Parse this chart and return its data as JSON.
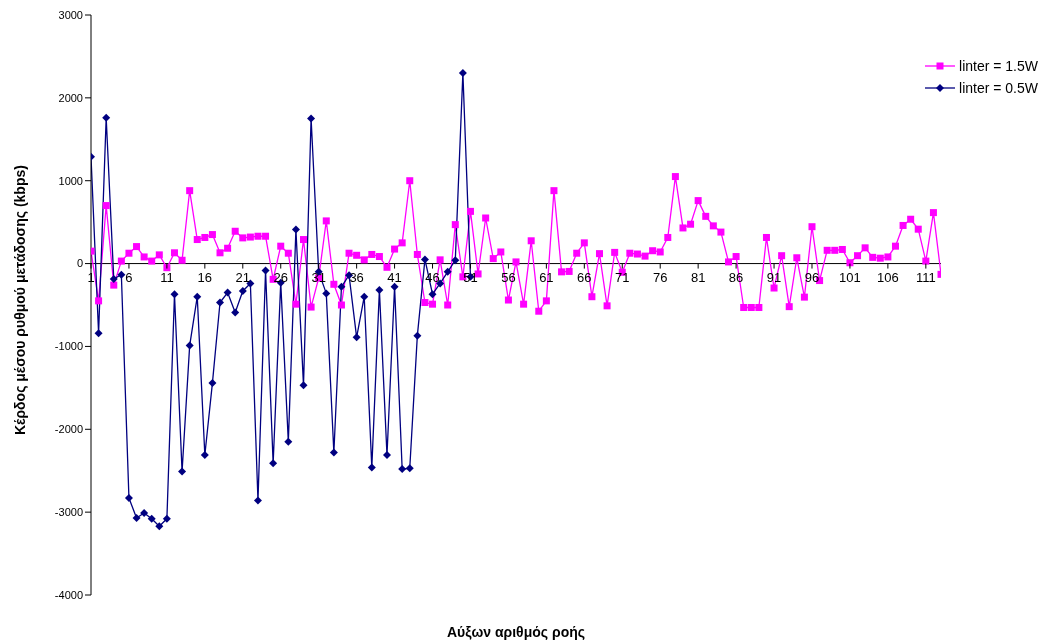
{
  "chart_data": {
    "type": "line",
    "xlabel": "Αύξων αριθμός ροής",
    "ylabel": "Κέρδος μέσου ρυθμού μετάδοσης (kbps)",
    "x": [
      1,
      2,
      3,
      4,
      5,
      6,
      7,
      8,
      9,
      10,
      11,
      12,
      13,
      14,
      15,
      16,
      17,
      18,
      19,
      20,
      21,
      22,
      23,
      24,
      25,
      26,
      27,
      28,
      29,
      30,
      31,
      32,
      33,
      34,
      35,
      36,
      37,
      38,
      39,
      40,
      41,
      42,
      43,
      44,
      45,
      46,
      47,
      48,
      49,
      50,
      51,
      52,
      53,
      54,
      55,
      56,
      57,
      58,
      59,
      60,
      61,
      62,
      63,
      64,
      65,
      66,
      67,
      68,
      69,
      70,
      71,
      72,
      73,
      74,
      75,
      76,
      77,
      78,
      79,
      80,
      81,
      82,
      83,
      84,
      85,
      86,
      87,
      88,
      89,
      90,
      91,
      92,
      93,
      94,
      95,
      96,
      97,
      98,
      99,
      100,
      101,
      102,
      103,
      104,
      105,
      106,
      107,
      108,
      109,
      110,
      111,
      112,
      113
    ],
    "xlim": [
      1,
      113
    ],
    "xticks": [
      1,
      6,
      11,
      16,
      21,
      26,
      31,
      36,
      41,
      46,
      51,
      56,
      61,
      66,
      71,
      76,
      81,
      86,
      91,
      96,
      101,
      106,
      111
    ],
    "ylim": [
      -4000,
      3000
    ],
    "yticks": [
      -4000,
      -3000,
      -2000,
      -1000,
      0,
      1000,
      2000,
      3000
    ],
    "grid": false,
    "legend": "top right",
    "line_style": "solid",
    "series": [
      {
        "name": "linter = 1.5W",
        "color": "#ff00ff",
        "marker": "square",
        "values": [
          150,
          -450,
          700,
          -260,
          30,
          125,
          205,
          80,
          30,
          105,
          -50,
          130,
          40,
          880,
          290,
          315,
          350,
          130,
          185,
          390,
          310,
          320,
          330,
          330,
          -190,
          210,
          125,
          -490,
          290,
          -525,
          -175,
          515,
          -250,
          -500,
          125,
          100,
          45,
          110,
          85,
          -45,
          175,
          250,
          1000,
          110,
          -470,
          -490,
          45,
          -500,
          470,
          -160,
          630,
          -125,
          550,
          60,
          140,
          -440,
          20,
          -490,
          275,
          -575,
          -450,
          880,
          -100,
          -95,
          125,
          250,
          -400,
          120,
          -510,
          135,
          -105,
          125,
          115,
          90,
          155,
          140,
          315,
          1050,
          430,
          475,
          760,
          570,
          455,
          380,
          20,
          85,
          -530,
          -530,
          -530,
          315,
          -295,
          95,
          -520,
          70,
          -405,
          445,
          -205,
          160,
          160,
          170,
          10,
          95,
          190,
          75,
          65,
          80,
          210,
          460,
          535,
          415,
          30,
          615,
          -130
        ]
      },
      {
        "name": "linter = 0.5W",
        "color": "#000080",
        "marker": "diamond",
        "x": [
          1,
          2,
          3,
          4,
          5,
          6,
          7,
          8,
          9,
          10,
          11,
          12,
          13,
          14,
          15,
          16,
          17,
          18,
          19,
          20,
          21,
          22,
          23,
          24,
          25,
          26,
          27,
          28,
          29,
          30,
          31,
          32,
          33,
          34,
          35,
          36,
          37,
          38,
          39,
          40,
          41,
          42,
          43,
          44,
          45,
          46,
          47,
          48,
          49,
          50,
          51
        ],
        "values": [
          1290,
          -840,
          1760,
          -185,
          -135,
          -2830,
          -3070,
          -3010,
          -3080,
          -3170,
          -3080,
          -370,
          -2510,
          -990,
          -400,
          -2310,
          -1440,
          -470,
          -350,
          -590,
          -330,
          -240,
          -2860,
          -85,
          -2410,
          -230,
          -2150,
          410,
          -1470,
          1750,
          -100,
          -360,
          -2280,
          -280,
          -140,
          -890,
          -400,
          -2460,
          -320,
          -2310,
          -280,
          -2480,
          -2470,
          -870,
          50,
          -370,
          -240,
          -100,
          40,
          2300,
          -160
        ]
      }
    ]
  }
}
